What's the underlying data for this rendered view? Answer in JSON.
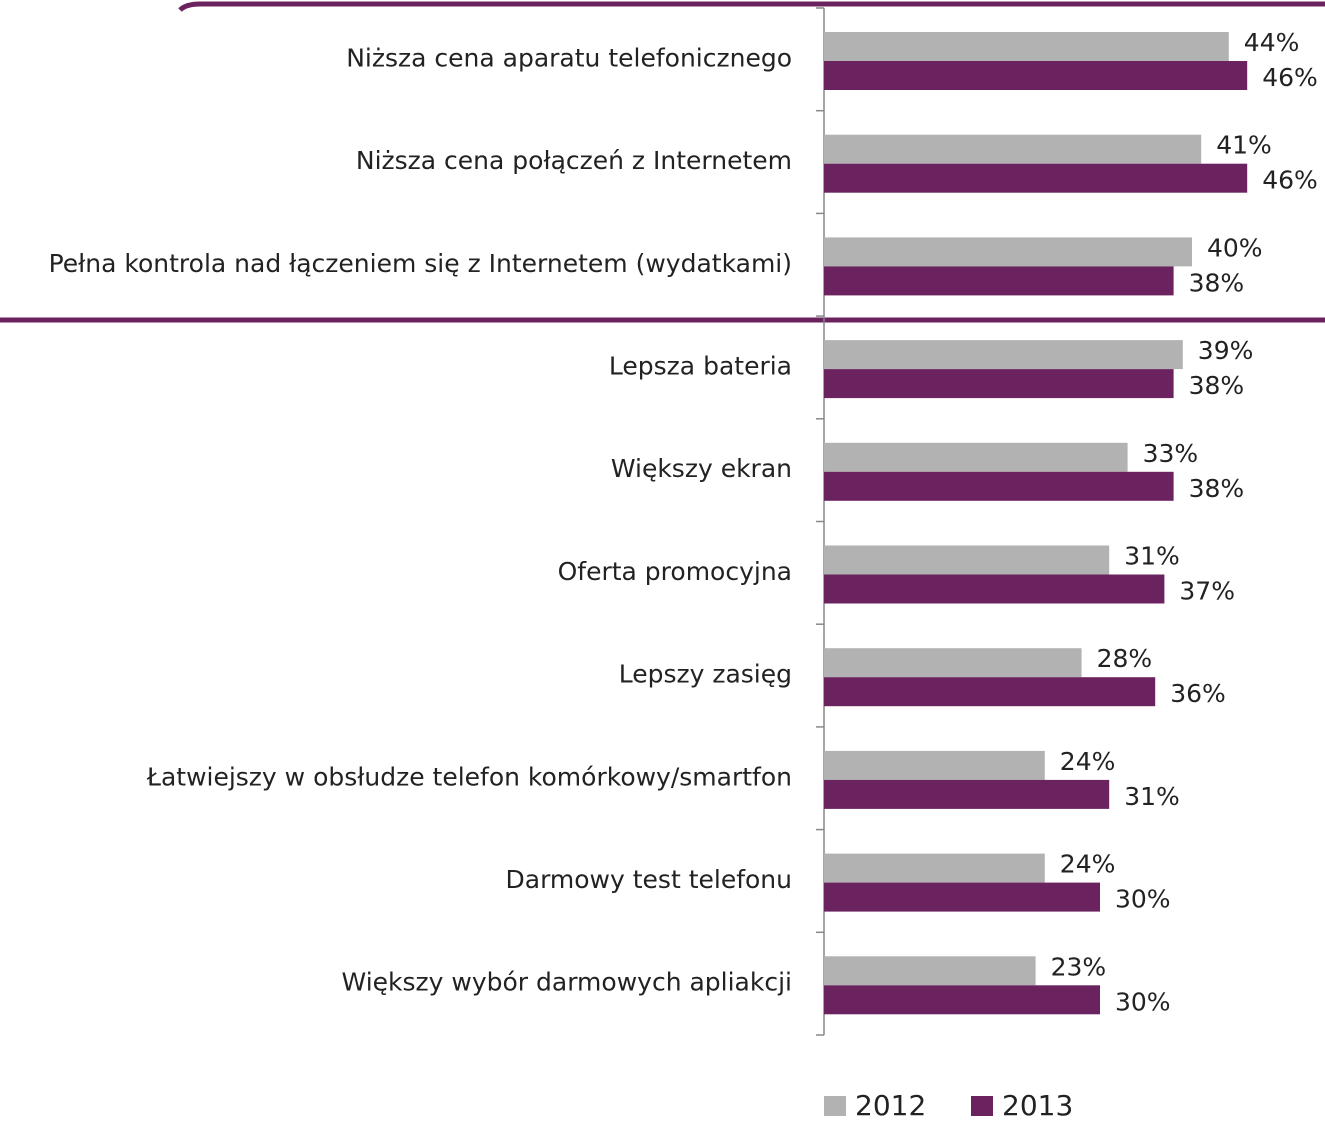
{
  "chart_data": {
    "type": "bar",
    "orientation": "horizontal",
    "categories": [
      "Niższa cena aparatu telefonicznego",
      "Niższa cena połączeń z Internetem",
      "Pełna kontrola nad łączeniem się z Internetem (wydatkami)",
      "Lepsza bateria",
      "Większy ekran",
      "Oferta promocyjna",
      "Lepszy zasięg",
      "Łatwiejszy w obsłudze telefon komórkowy/smartfon",
      "Darmowy test telefonu",
      "Większy wybór darmowych apliakcji"
    ],
    "series": [
      {
        "name": "2012",
        "color": "#b2b2b2",
        "values": [
          44,
          41,
          40,
          39,
          33,
          31,
          28,
          24,
          24,
          23
        ],
        "value_labels": [
          "44%",
          "41%",
          "40%",
          "39%",
          "33%",
          "31%",
          "28%",
          "24%",
          "24%",
          "23%"
        ]
      },
      {
        "name": "2013",
        "color": "#6b2360",
        "values": [
          46,
          46,
          38,
          38,
          38,
          37,
          36,
          31,
          30,
          30
        ],
        "value_labels": [
          "46%",
          "46%",
          "38%",
          "38%",
          "38%",
          "37%",
          "36%",
          "31%",
          "30%",
          "30%"
        ]
      }
    ],
    "xlim": [
      0,
      100
    ],
    "legend": "bottom"
  }
}
